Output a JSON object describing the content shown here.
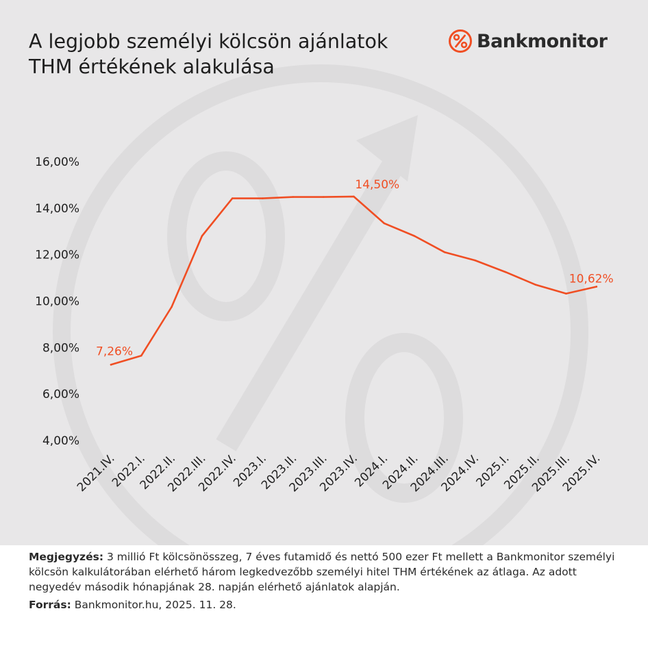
{
  "title_lines": [
    "A legjobb személyi kölcsön ajánlatok",
    "THM értékének alakulása"
  ],
  "logo": {
    "text": "Bankmonitor",
    "icon": "percent-circle-icon",
    "color": "#f04e23"
  },
  "chart_data": {
    "type": "line",
    "categories": [
      "2021.IV.",
      "2022.I.",
      "2022.II.",
      "2022.III.",
      "2022.IV.",
      "2023.I.",
      "2023.II.",
      "2023.III.",
      "2023.IV.",
      "2024.I.",
      "2024.II.",
      "2024.III.",
      "2024.IV.",
      "2025.I.",
      "2025.II.",
      "2025.III.",
      "2025.IV."
    ],
    "values": [
      7.26,
      7.65,
      9.75,
      12.8,
      14.42,
      14.42,
      14.48,
      14.48,
      14.5,
      13.35,
      12.8,
      12.1,
      11.75,
      11.25,
      10.7,
      10.32,
      10.62
    ],
    "y_ticks": [
      "4,00%",
      "6,00%",
      "8,00%",
      "10,00%",
      "12,00%",
      "14,00%",
      "16,00%"
    ],
    "ylim": [
      4,
      16
    ],
    "line_color": "#f04e23",
    "grid": false,
    "annotations": [
      {
        "index": 0,
        "label": "7,26%"
      },
      {
        "index": 8,
        "label": "14,50%"
      },
      {
        "index": 16,
        "label": "10,62%"
      }
    ]
  },
  "note": {
    "label": "Megjegyzés:",
    "text": " 3 millió Ft kölcsönösszeg, 7 éves futamidő és nettó 500 ezer Ft mellett a Bankmonitor személyi kölcsön kalkulátorában elérhető három legkedvezőbb személyi hitel THM értékének az átlaga. Az adott negyedév második hónapjának 28. napján elérhető ajánlatok alapján."
  },
  "source": {
    "label": "Forrás:",
    "text": " Bankmonitor.hu, 2025. 11. 28."
  }
}
